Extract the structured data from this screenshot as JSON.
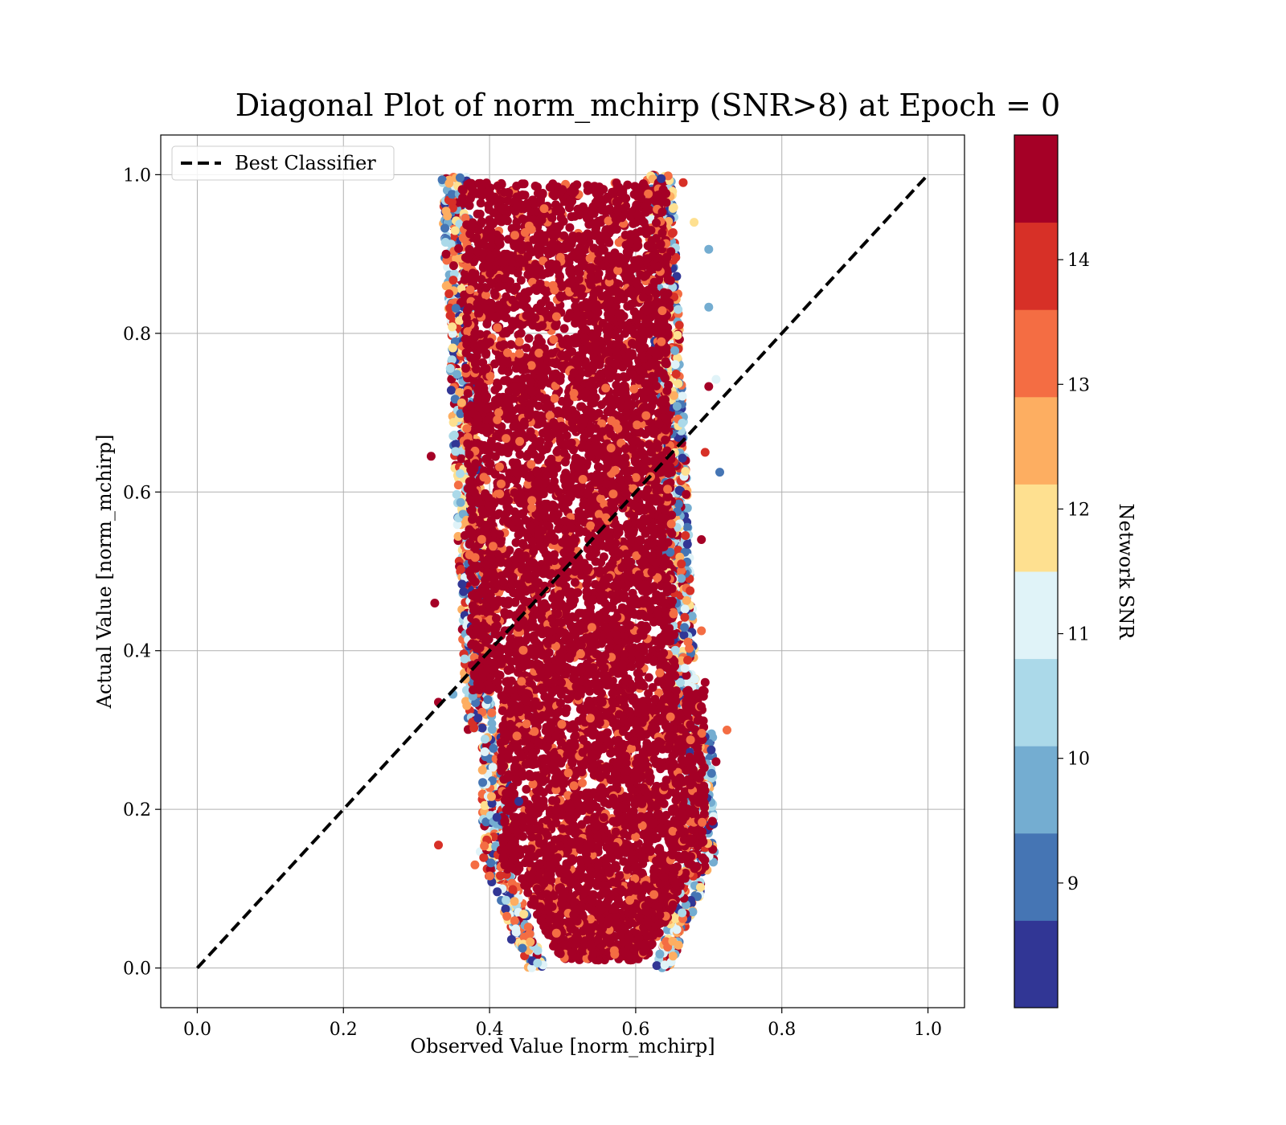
{
  "chart_data": {
    "type": "scatter",
    "title": "Diagonal Plot of norm_mchirp (SNR>8) at Epoch = 0",
    "xlabel": "Observed Value [norm_mchirp]",
    "ylabel": "Actual Value [norm_mchirp]",
    "xlim": [
      -0.05,
      1.05
    ],
    "ylim": [
      -0.05,
      1.05
    ],
    "x_ticks": [
      "0.0",
      "0.2",
      "0.4",
      "0.6",
      "0.8",
      "1.0"
    ],
    "y_ticks": [
      "0.0",
      "0.2",
      "0.4",
      "0.6",
      "0.8",
      "1.0"
    ],
    "grid": true,
    "legend": {
      "position": "top-left",
      "entries": [
        "Best Classifier"
      ]
    },
    "reference_line": {
      "name": "Best Classifier",
      "x": [
        0,
        1
      ],
      "y": [
        0,
        1
      ],
      "style": "dashed",
      "color": "#000000"
    },
    "colorbar": {
      "label": "Network SNR",
      "range": [
        8,
        15
      ],
      "ticks": [
        "9",
        "10",
        "11",
        "12",
        "13",
        "14"
      ],
      "colors": [
        "#313695",
        "#4575b4",
        "#74add1",
        "#abd9e9",
        "#e0f3f8",
        "#fee090",
        "#fdae61",
        "#f46d43",
        "#d73027",
        "#a50026"
      ]
    },
    "scatter_distribution": {
      "y_range": [
        0.0,
        1.0
      ],
      "x_center_at_y0": 0.53,
      "x_center_at_y1": 0.52,
      "x_spread": 0.16,
      "dominant_snr": 15
    },
    "outliers": [
      {
        "x": 0.32,
        "y": 0.645,
        "snr": 15
      },
      {
        "x": 0.325,
        "y": 0.46,
        "snr": 15
      },
      {
        "x": 0.33,
        "y": 0.335,
        "snr": 15
      },
      {
        "x": 0.33,
        "y": 0.155,
        "snr": 14
      },
      {
        "x": 0.35,
        "y": 0.345,
        "snr": 10
      },
      {
        "x": 0.38,
        "y": 0.13,
        "snr": 13
      },
      {
        "x": 0.715,
        "y": 0.625,
        "snr": 9
      },
      {
        "x": 0.725,
        "y": 0.3,
        "snr": 13
      },
      {
        "x": 0.705,
        "y": 0.185,
        "snr": 15
      },
      {
        "x": 0.71,
        "y": 0.26,
        "snr": 15
      },
      {
        "x": 0.7,
        "y": 0.733,
        "snr": 15
      },
      {
        "x": 0.71,
        "y": 0.742,
        "snr": 11
      },
      {
        "x": 0.7,
        "y": 0.833,
        "snr": 10
      },
      {
        "x": 0.7,
        "y": 0.906,
        "snr": 10
      },
      {
        "x": 0.68,
        "y": 0.94,
        "snr": 12
      },
      {
        "x": 0.665,
        "y": 0.99,
        "snr": 14
      },
      {
        "x": 0.635,
        "y": 0.995,
        "snr": 8
      },
      {
        "x": 0.43,
        "y": 0.036,
        "snr": 8
      },
      {
        "x": 0.445,
        "y": 0.025,
        "snr": 9
      },
      {
        "x": 0.41,
        "y": 0.19,
        "snr": 8
      },
      {
        "x": 0.44,
        "y": 0.21,
        "snr": 8
      },
      {
        "x": 0.695,
        "y": 0.36,
        "snr": 15
      },
      {
        "x": 0.69,
        "y": 0.54,
        "snr": 15
      },
      {
        "x": 0.695,
        "y": 0.65,
        "snr": 14
      },
      {
        "x": 0.69,
        "y": 0.425,
        "snr": 13
      }
    ]
  }
}
